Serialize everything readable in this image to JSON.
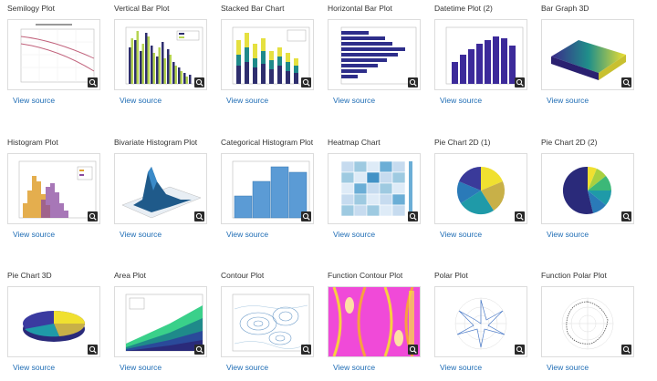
{
  "view_source_label": "View source",
  "plots": [
    {
      "title": "Semilogy Plot",
      "icon": "semilogy-plot-thumbnail"
    },
    {
      "title": "Vertical Bar Plot",
      "icon": "vertical-bar-plot-thumbnail"
    },
    {
      "title": "Stacked Bar Chart",
      "icon": "stacked-bar-chart-thumbnail"
    },
    {
      "title": "Horizontal Bar Plot",
      "icon": "horizontal-bar-plot-thumbnail"
    },
    {
      "title": "Datetime Plot (2)",
      "icon": "datetime-plot-thumbnail"
    },
    {
      "title": "Bar Graph 3D",
      "icon": "bar-graph-3d-thumbnail"
    },
    {
      "title": "Histogram Plot",
      "icon": "histogram-plot-thumbnail"
    },
    {
      "title": "Bivariate Histogram Plot",
      "icon": "bivariate-histogram-plot-thumbnail"
    },
    {
      "title": "Categorical Histogram Plot",
      "icon": "categorical-histogram-plot-thumbnail"
    },
    {
      "title": "Heatmap Chart",
      "icon": "heatmap-chart-thumbnail"
    },
    {
      "title": "Pie Chart 2D (1)",
      "icon": "pie-chart-2d-thumbnail"
    },
    {
      "title": "Pie Chart 2D (2)",
      "icon": "pie-chart-2d-thumbnail"
    },
    {
      "title": "Pie Chart 3D",
      "icon": "pie-chart-3d-thumbnail"
    },
    {
      "title": "Area Plot",
      "icon": "area-plot-thumbnail"
    },
    {
      "title": "Contour Plot",
      "icon": "contour-plot-thumbnail"
    },
    {
      "title": "Function Contour Plot",
      "icon": "function-contour-plot-thumbnail"
    },
    {
      "title": "Polar Plot",
      "icon": "polar-plot-thumbnail"
    },
    {
      "title": "Function Polar Plot",
      "icon": "function-polar-plot-thumbnail"
    }
  ]
}
